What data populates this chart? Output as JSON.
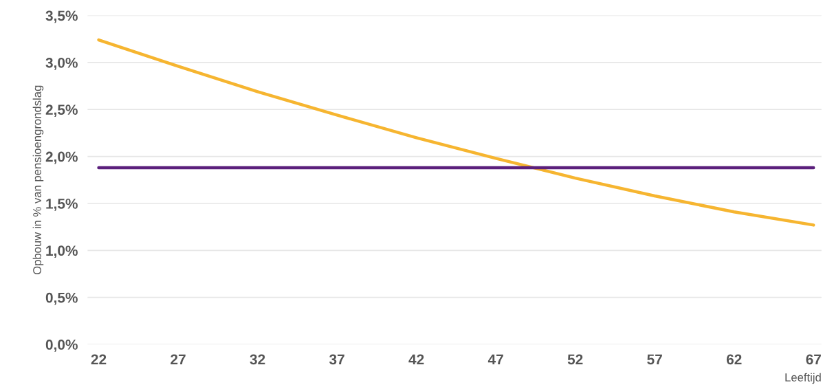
{
  "chart_data": {
    "type": "line",
    "xlabel": "Leeftijd",
    "ylabel": "Opbouw in % van pensioengrondslag",
    "x": [
      22,
      27,
      32,
      37,
      42,
      47,
      52,
      57,
      62,
      67
    ],
    "series": [
      {
        "color": "#f6b530",
        "values": [
          3.24,
          2.96,
          2.69,
          2.44,
          2.2,
          1.98,
          1.77,
          1.58,
          1.41,
          1.27
        ]
      },
      {
        "color": "#5b1f7c",
        "values": [
          1.88,
          1.88,
          1.88,
          1.88,
          1.88,
          1.88,
          1.88,
          1.88,
          1.88,
          1.88
        ]
      }
    ],
    "xlim": [
      21.3,
      67.5
    ],
    "xticks": [
      22,
      27,
      32,
      37,
      42,
      47,
      52,
      57,
      62,
      67
    ],
    "ylim": [
      0,
      3.5
    ],
    "yticks": [
      {
        "value": 0,
        "label": "0,0%"
      },
      {
        "value": 0.5,
        "label": "0,5%"
      },
      {
        "value": 1,
        "label": "1,0%"
      },
      {
        "value": 1.5,
        "label": "1,5%"
      },
      {
        "value": 2,
        "label": "2,0%"
      },
      {
        "value": 2.5,
        "label": "2,5%"
      },
      {
        "value": 3,
        "label": "3,0%"
      },
      {
        "value": 3.5,
        "label": "3,5%"
      }
    ],
    "grid": "y",
    "legend": false,
    "marker": "none",
    "line_style": "solid"
  }
}
